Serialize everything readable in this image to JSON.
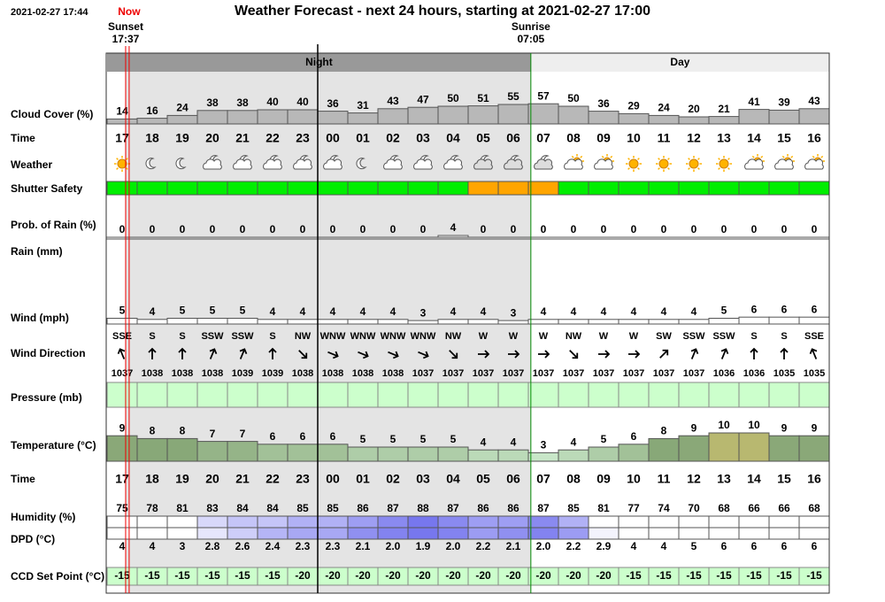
{
  "header": {
    "timestamp": "2021-02-27 17:44",
    "now": "Now",
    "title": "Weather Forecast - next 24 hours, starting at 2021-02-27 17:00",
    "sunset_label": "Sunset",
    "sunset": "17:37",
    "sunrise_label": "Sunrise",
    "sunrise": "07:05",
    "night": "Night",
    "day": "Day"
  },
  "labels": {
    "cloud": "Cloud Cover (%)",
    "time": "Time",
    "weather": "Weather",
    "shutter": "Shutter Safety",
    "rain_prob": "Prob. of Rain (%)",
    "rain": "Rain (mm)",
    "wind": "Wind (mph)",
    "wind_dir": "Wind Direction",
    "pressure": "Pressure (mb)",
    "temperature": "Temperature (°C)",
    "time2": "Time",
    "humidity": "Humidity (%)",
    "dpd": "DPD (°C)",
    "ccd": "CCD Set Point (°C)"
  },
  "hours": [
    "17",
    "18",
    "19",
    "20",
    "21",
    "22",
    "23",
    "00",
    "01",
    "02",
    "03",
    "04",
    "05",
    "06",
    "07",
    "08",
    "09",
    "10",
    "11",
    "12",
    "13",
    "14",
    "15",
    "16"
  ],
  "cloud_cover": [
    14,
    16,
    24,
    38,
    38,
    40,
    40,
    36,
    31,
    43,
    47,
    50,
    51,
    55,
    57,
    50,
    36,
    29,
    24,
    20,
    21,
    41,
    39,
    43
  ],
  "weather": [
    "sun",
    "moon",
    "moon",
    "cloud-moon",
    "cloud-moon",
    "cloud-moon",
    "cloud-moon",
    "cloud-moon",
    "moon",
    "cloud-moon",
    "cloud-moon",
    "cloud-moon",
    "cloud",
    "cloud",
    "cloud",
    "cloud-sun",
    "cloud-sun",
    "sun",
    "sun",
    "sun",
    "sun",
    "cloud-sun",
    "cloud-sun",
    "cloud-sun"
  ],
  "shutter_colors": [
    "#00ee00",
    "#00ee00",
    "#00ee00",
    "#00ee00",
    "#00ee00",
    "#00ee00",
    "#00ee00",
    "#00ee00",
    "#00ee00",
    "#00ee00",
    "#00ee00",
    "#00ee00",
    "#ffa500",
    "#ffa500",
    "#ffa500",
    "#00ee00",
    "#00ee00",
    "#00ee00",
    "#00ee00",
    "#00ee00",
    "#00ee00",
    "#00ee00",
    "#00ee00",
    "#00ee00"
  ],
  "rain_prob": [
    0,
    0,
    0,
    0,
    0,
    0,
    0,
    0,
    0,
    0,
    0,
    4,
    0,
    0,
    0,
    0,
    0,
    0,
    0,
    0,
    0,
    0,
    0,
    0
  ],
  "wind": [
    5,
    4,
    5,
    5,
    5,
    4,
    4,
    4,
    4,
    4,
    3,
    4,
    4,
    3,
    4,
    4,
    4,
    4,
    4,
    4,
    5,
    6,
    6,
    6
  ],
  "wind_dir": [
    "SSE",
    "S",
    "S",
    "SSW",
    "SSW",
    "S",
    "NW",
    "WNW",
    "WNW",
    "WNW",
    "WNW",
    "NW",
    "W",
    "W",
    "W",
    "NW",
    "W",
    "W",
    "SW",
    "SSW",
    "SSW",
    "S",
    "S",
    "SSE"
  ],
  "wind_arrow_deg": [
    337.5,
    0,
    0,
    22.5,
    22.5,
    0,
    135,
    112.5,
    112.5,
    112.5,
    112.5,
    135,
    90,
    90,
    90,
    135,
    90,
    90,
    45,
    22.5,
    22.5,
    0,
    0,
    337.5
  ],
  "pressure": [
    1037,
    1038,
    1038,
    1038,
    1039,
    1039,
    1038,
    1038,
    1038,
    1038,
    1037,
    1037,
    1037,
    1037,
    1037,
    1037,
    1037,
    1037,
    1037,
    1037,
    1036,
    1036,
    1035,
    1035
  ],
  "temperature": [
    9,
    8,
    8,
    7,
    7,
    6,
    6,
    6,
    5,
    5,
    5,
    5,
    4,
    4,
    3,
    4,
    5,
    6,
    8,
    9,
    10,
    10,
    9,
    9
  ],
  "humidity": [
    75,
    78,
    81,
    83,
    84,
    84,
    85,
    85,
    86,
    87,
    88,
    87,
    86,
    86,
    87,
    85,
    81,
    77,
    74,
    70,
    68,
    66,
    66,
    68
  ],
  "dpd": {
    "values": [
      4,
      4,
      3,
      2.8,
      2.6,
      2.4,
      2.3,
      2.3,
      2.1,
      2.0,
      1.9,
      2.0,
      2.2,
      2.1,
      2.0,
      2.2,
      2.9,
      4,
      4,
      5,
      6,
      6,
      6,
      6
    ],
    "value_labels": [
      "4",
      "4",
      "3",
      "2.8",
      "2.6",
      "2.4",
      "2.3",
      "2.3",
      "2.1",
      "2.0",
      "1.9",
      "2.0",
      "2.2",
      "2.1",
      "2.0",
      "2.2",
      "2.9",
      "4",
      "4",
      "5",
      "6",
      "6",
      "6",
      "6"
    ]
  },
  "ccd": [
    -15,
    -15,
    -15,
    -15,
    -15,
    -15,
    -20,
    -20,
    -20,
    -20,
    -20,
    -20,
    -20,
    -20,
    -20,
    -20,
    -20,
    -15,
    -15,
    -15,
    -15,
    -15,
    -15,
    -15
  ]
}
